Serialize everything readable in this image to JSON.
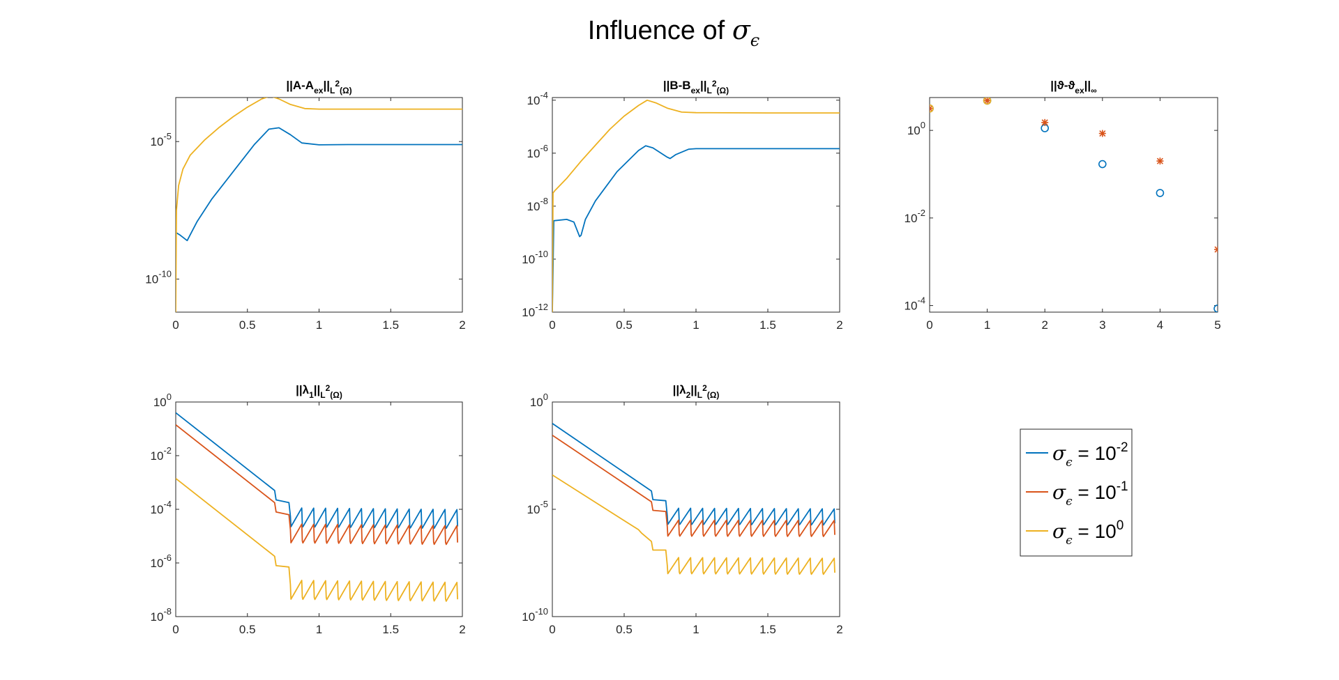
{
  "figure": {
    "title_prefix": "Influence of ",
    "title_symbol": "σ",
    "title_subscript": "ϵ"
  },
  "colors": {
    "series_0": "#0072BD",
    "series_1": "#D95319",
    "series_2": "#EDB120",
    "axes": "#262626"
  },
  "legend": {
    "placement": "lower-right empty tile",
    "entries": [
      {
        "symbol": "σ",
        "subscript": "ϵ",
        "text": " = 10",
        "exponent": "-2"
      },
      {
        "symbol": "σ",
        "subscript": "ϵ",
        "text": " = 10",
        "exponent": "-1"
      },
      {
        "symbol": "σ",
        "subscript": "ϵ",
        "text": " = 10",
        "exponent": "0"
      }
    ]
  },
  "chart_data": [
    {
      "type": "line",
      "title": "||A-A_ex||_L²(Ω)",
      "title_parts": [
        "||A-A",
        "ex",
        "||",
        "L",
        "2",
        "(Ω)"
      ],
      "xlabel": "",
      "ylabel": "",
      "yscale": "log",
      "xlim": [
        0,
        2
      ],
      "ylim_log10": [
        -11.2,
        -3.4
      ],
      "x_ticks": [
        0,
        0.5,
        1,
        1.5,
        2
      ],
      "x_tick_labels": [
        "0",
        "0.5",
        "1",
        "1.5",
        "2"
      ],
      "y_ticks_log10": [
        -5,
        -10
      ],
      "y_tick_labels": [
        {
          "base": "10",
          "exp": "-5"
        },
        {
          "base": "10",
          "exp": "-10"
        }
      ],
      "grid": false,
      "series": [
        {
          "color_index": 0,
          "x": [
            0,
            0.03,
            0.08,
            0.15,
            0.25,
            0.4,
            0.55,
            0.65,
            0.72,
            0.8,
            0.88,
            1.0,
            1.2,
            1.5,
            2.0
          ],
          "log10_y": [
            -8.3,
            -8.4,
            -8.6,
            -7.9,
            -7.1,
            -6.1,
            -5.1,
            -4.55,
            -4.5,
            -4.75,
            -5.05,
            -5.12,
            -5.11,
            -5.11,
            -5.11
          ]
        },
        {
          "color_index": 2,
          "x": [
            0,
            0.005,
            0.02,
            0.05,
            0.1,
            0.2,
            0.3,
            0.4,
            0.5,
            0.6,
            0.66,
            0.72,
            0.8,
            0.9,
            1.0,
            1.5,
            2.0
          ],
          "log10_y": [
            -11.2,
            -7.5,
            -6.6,
            -6.0,
            -5.5,
            -4.95,
            -4.5,
            -4.1,
            -3.75,
            -3.45,
            -3.35,
            -3.45,
            -3.65,
            -3.8,
            -3.82,
            -3.82,
            -3.82
          ]
        }
      ]
    },
    {
      "type": "line",
      "title": "||B-B_ex||_L²(Ω)",
      "title_parts": [
        "||B-B",
        "ex",
        "||",
        "L",
        "2",
        "(Ω)"
      ],
      "xlabel": "",
      "ylabel": "",
      "yscale": "log",
      "xlim": [
        0,
        2
      ],
      "ylim_log10": [
        -12,
        -3.9
      ],
      "x_ticks": [
        0,
        0.5,
        1,
        1.5,
        2
      ],
      "x_tick_labels": [
        "0",
        "0.5",
        "1",
        "1.5",
        "2"
      ],
      "y_ticks_log10": [
        -4,
        -6,
        -8,
        -10,
        -12
      ],
      "y_tick_labels": [
        {
          "base": "10",
          "exp": "-4"
        },
        {
          "base": "10",
          "exp": "-6"
        },
        {
          "base": "10",
          "exp": "-8"
        },
        {
          "base": "10",
          "exp": "-10"
        },
        {
          "base": "10",
          "exp": "-12"
        }
      ],
      "grid": false,
      "series": [
        {
          "color_index": 0,
          "x": [
            0,
            0.01,
            0.1,
            0.15,
            0.19,
            0.2,
            0.23,
            0.3,
            0.45,
            0.6,
            0.65,
            0.7,
            0.8,
            0.82,
            0.86,
            0.95,
            1.0,
            1.5,
            2.0
          ],
          "log10_y": [
            -12,
            -8.55,
            -8.5,
            -8.6,
            -9.15,
            -9.1,
            -8.5,
            -7.8,
            -6.7,
            -5.9,
            -5.72,
            -5.8,
            -6.15,
            -6.2,
            -6.05,
            -5.85,
            -5.83,
            -5.83,
            -5.83
          ]
        },
        {
          "color_index": 2,
          "x": [
            0,
            0.005,
            0.02,
            0.1,
            0.2,
            0.3,
            0.4,
            0.5,
            0.6,
            0.66,
            0.72,
            0.8,
            0.9,
            1.0,
            1.5,
            2.0
          ],
          "log10_y": [
            -12,
            -7.5,
            -7.4,
            -6.95,
            -6.3,
            -5.7,
            -5.1,
            -4.6,
            -4.2,
            -4.0,
            -4.1,
            -4.3,
            -4.45,
            -4.47,
            -4.48,
            -4.48
          ]
        }
      ]
    },
    {
      "type": "scatter",
      "title": "||ϑ-ϑ_ex||_∞",
      "title_parts": [
        "||ϑ-ϑ",
        "ex",
        "||",
        "∞"
      ],
      "xlabel": "",
      "ylabel": "",
      "yscale": "log",
      "xlim": [
        0,
        5
      ],
      "ylim_log10": [
        -4.15,
        0.75
      ],
      "x_ticks": [
        0,
        1,
        2,
        3,
        4,
        5
      ],
      "x_tick_labels": [
        "0",
        "1",
        "2",
        "3",
        "4",
        "5"
      ],
      "y_ticks_log10": [
        0,
        -2,
        -4
      ],
      "y_tick_labels": [
        {
          "base": "10",
          "exp": "0"
        },
        {
          "base": "10",
          "exp": "-2"
        },
        {
          "base": "10",
          "exp": "-4"
        }
      ],
      "grid": false,
      "series": [
        {
          "color_index": 0,
          "marker": "circle",
          "x": [
            0,
            1,
            2,
            3,
            4,
            5
          ],
          "log10_y": [
            0.5,
            0.68,
            0.05,
            -0.77,
            -1.43,
            -4.07
          ]
        },
        {
          "color_index": 1,
          "marker": "asterisk",
          "x": [
            0,
            1,
            2,
            3,
            4,
            5
          ],
          "log10_y": [
            0.5,
            0.68,
            0.18,
            -0.07,
            -0.7,
            -2.72
          ]
        },
        {
          "color_index": 2,
          "marker": "circle",
          "x": [
            0,
            1
          ],
          "log10_y": [
            0.5,
            0.68
          ]
        }
      ]
    },
    {
      "type": "line",
      "title": "||λ_1||_L²(Ω)",
      "title_parts": [
        "||",
        "λ",
        "1",
        "||",
        "L",
        "2",
        "(Ω)"
      ],
      "xlabel": "",
      "ylabel": "",
      "yscale": "log",
      "xlim": [
        0,
        2
      ],
      "ylim_log10": [
        -8,
        0
      ],
      "x_ticks": [
        0,
        0.5,
        1,
        1.5,
        2
      ],
      "x_tick_labels": [
        "0",
        "0.5",
        "1",
        "1.5",
        "2"
      ],
      "y_ticks_log10": [
        0,
        -2,
        -4,
        -6,
        -8
      ],
      "y_tick_labels": [
        {
          "base": "10",
          "exp": "0"
        },
        {
          "base": "10",
          "exp": "-2"
        },
        {
          "base": "10",
          "exp": "-4"
        },
        {
          "base": "10",
          "exp": "-6"
        },
        {
          "base": "10",
          "exp": "-8"
        }
      ],
      "grid": false,
      "sawtooth": {
        "start": 0.8,
        "period": 0.0833,
        "drop": 0.7
      },
      "series": [
        {
          "color_index": 0,
          "x": [
            0,
            0.69,
            0.7,
            0.79,
            0.8
          ],
          "log10_y": [
            -0.4,
            -3.3,
            -3.65,
            -3.75,
            -4.25
          ],
          "tail_peak": -3.95,
          "tail_end": -4.15
        },
        {
          "color_index": 1,
          "x": [
            0,
            0.69,
            0.7,
            0.79,
            0.8
          ],
          "log10_y": [
            -0.85,
            -3.75,
            -4.1,
            -4.2,
            -4.75
          ],
          "tail_peak": -4.55,
          "tail_end": -4.75
        },
        {
          "color_index": 2,
          "x": [
            0,
            0.69,
            0.7,
            0.79,
            0.8
          ],
          "log10_y": [
            -2.85,
            -5.75,
            -6.1,
            -6.15,
            -6.8
          ],
          "tail_peak": -6.65,
          "tail_end": -6.9
        }
      ]
    },
    {
      "type": "line",
      "title": "||λ_2||_L²(Ω)",
      "title_parts": [
        "||",
        "λ",
        "2",
        "||",
        "L",
        "2",
        "(Ω)"
      ],
      "xlabel": "",
      "ylabel": "",
      "yscale": "log",
      "xlim": [
        0,
        2
      ],
      "ylim_log10": [
        -10,
        0
      ],
      "x_ticks": [
        0,
        0.5,
        1,
        1.5,
        2
      ],
      "x_tick_labels": [
        "0",
        "0.5",
        "1",
        "1.5",
        "2"
      ],
      "y_ticks_log10": [
        0,
        -5,
        -10
      ],
      "y_tick_labels": [
        {
          "base": "10",
          "exp": "0"
        },
        {
          "base": "10",
          "exp": "-5"
        },
        {
          "base": "10",
          "exp": "-10"
        }
      ],
      "grid": false,
      "sawtooth": {
        "start": 0.8,
        "period": 0.0833,
        "drop": 0.75
      },
      "series": [
        {
          "color_index": 0,
          "x": [
            0,
            0.69,
            0.7,
            0.79,
            0.8
          ],
          "log10_y": [
            -1.0,
            -4.15,
            -4.55,
            -4.6,
            -5.3
          ],
          "tail_peak": -4.95,
          "tail_end": -5.05
        },
        {
          "color_index": 1,
          "x": [
            0,
            0.69,
            0.7,
            0.79,
            0.8
          ],
          "log10_y": [
            -1.55,
            -4.65,
            -5.05,
            -5.1,
            -5.8
          ],
          "tail_peak": -5.5,
          "tail_end": -5.55
        },
        {
          "color_index": 2,
          "x": [
            0,
            0.6,
            0.62,
            0.69,
            0.7,
            0.79,
            0.8
          ],
          "log10_y": [
            -3.4,
            -5.95,
            -6.1,
            -6.5,
            -6.9,
            -6.9,
            -7.6
          ],
          "tail_peak": -7.25,
          "tail_end": -7.35
        }
      ]
    }
  ]
}
